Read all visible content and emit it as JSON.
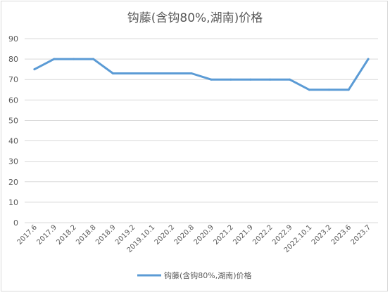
{
  "chart_data": {
    "type": "line",
    "title": "钩藤(含钩80%,湖南)价格",
    "xlabel": "",
    "ylabel": "",
    "ylim": [
      0,
      90
    ],
    "yticks": [
      0,
      10,
      20,
      30,
      40,
      50,
      60,
      70,
      80,
      90
    ],
    "grid": true,
    "legend_position": "bottom",
    "categories": [
      "2017.6",
      "2017.9",
      "2018.2",
      "2018.8",
      "2018.9",
      "2019.2",
      "2019.10.1",
      "2020.2",
      "2020.8",
      "2020.9",
      "2021.2",
      "2021.9",
      "2022.2",
      "2022.9",
      "2022.10.1",
      "2023.2",
      "2023.6",
      "2023.7"
    ],
    "series": [
      {
        "name": "钩藤(含钩80%,湖南)价格",
        "color": "#5b9bd5",
        "values": [
          75,
          80,
          80,
          80,
          73,
          73,
          73,
          73,
          73,
          70,
          70,
          70,
          70,
          70,
          65,
          65,
          65,
          80
        ]
      }
    ]
  }
}
